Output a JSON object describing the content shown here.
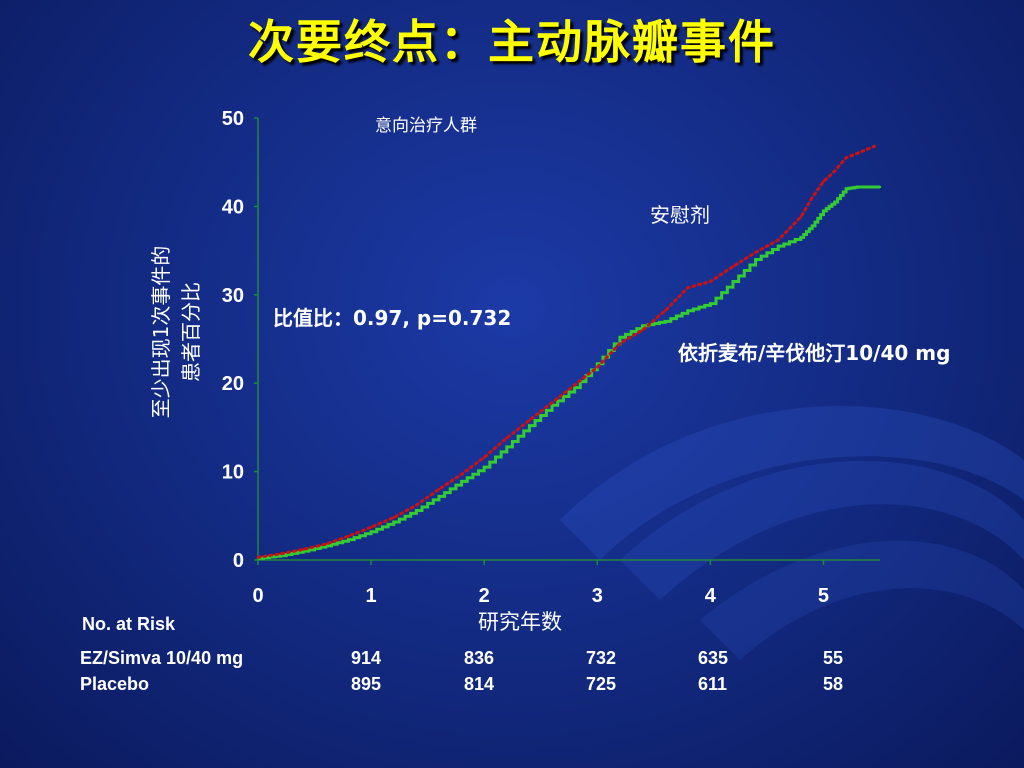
{
  "slide": {
    "title": "次要终点：主动脉瓣事件",
    "ylabel_line1": "至少出现1次事件的",
    "ylabel_line2": "患者百分比",
    "population": "意向治疗人群",
    "placebo_label": "安慰剂",
    "ezsimva_label": "依折麦布/辛伐他汀10/40 mg",
    "hazard_text": "比值比：0.97,  p=0.732",
    "colors": {
      "title": "#ffff00",
      "background": "#12297f",
      "placebo": "#cc1111",
      "ezsimva": "#33cc33",
      "axis": "#1e8a3a"
    }
  },
  "risk_table": {
    "heading": "No. at Risk",
    "rows": [
      {
        "label": "EZ/Simva 10/40 mg",
        "values": [
          "914",
          "836",
          "732",
          "635",
          "55"
        ]
      },
      {
        "label": "Placebo",
        "values": [
          "895",
          "814",
          "725",
          "611",
          "58"
        ]
      }
    ]
  },
  "chart_data": {
    "type": "line",
    "title": "",
    "xlabel": "研究年数",
    "ylabel": "至少出现1次事件的患者百分比",
    "xlim": [
      0,
      5.5
    ],
    "ylim": [
      0,
      50
    ],
    "xticks": [
      "0",
      "1",
      "2",
      "3",
      "4",
      "5"
    ],
    "yticks": [
      "0",
      "10",
      "20",
      "30",
      "40",
      "50"
    ],
    "grid": false,
    "series": [
      {
        "name": "依折麦布/辛伐他汀10/40 mg",
        "color": "#33cc33",
        "style": "solid-step",
        "x": [
          0,
          0.2,
          0.4,
          0.6,
          0.8,
          1.0,
          1.2,
          1.4,
          1.6,
          1.8,
          2.0,
          2.2,
          2.4,
          2.6,
          2.8,
          3.0,
          3.2,
          3.4,
          3.6,
          3.8,
          4.0,
          4.2,
          4.4,
          4.6,
          4.8,
          4.9,
          5.0,
          5.1,
          5.2,
          5.3,
          5.5
        ],
        "y": [
          0.2,
          0.5,
          1.0,
          1.6,
          2.3,
          3.2,
          4.3,
          5.6,
          7.2,
          8.9,
          10.5,
          12.8,
          15.2,
          17.5,
          19.5,
          22.2,
          25.2,
          26.5,
          27.0,
          28.2,
          29.0,
          31.5,
          34.0,
          35.5,
          36.5,
          37.8,
          39.5,
          40.5,
          42.0,
          42.2,
          42.2
        ]
      },
      {
        "name": "安慰剂",
        "color": "#cc1111",
        "style": "dotted",
        "x": [
          0,
          0.2,
          0.4,
          0.6,
          0.8,
          1.0,
          1.2,
          1.4,
          1.6,
          1.8,
          2.0,
          2.2,
          2.4,
          2.6,
          2.8,
          3.0,
          3.2,
          3.4,
          3.6,
          3.8,
          4.0,
          4.2,
          4.4,
          4.6,
          4.8,
          4.9,
          5.0,
          5.1,
          5.2,
          5.3,
          5.45
        ],
        "y": [
          0.3,
          0.7,
          1.2,
          1.8,
          2.7,
          3.7,
          4.8,
          6.2,
          8.0,
          9.7,
          11.6,
          13.8,
          15.8,
          17.8,
          19.8,
          21.8,
          24.5,
          26.0,
          28.2,
          30.8,
          31.5,
          33.2,
          34.8,
          36.2,
          38.8,
          41.0,
          42.8,
          44.0,
          45.5,
          46.0,
          46.8
        ]
      }
    ]
  }
}
